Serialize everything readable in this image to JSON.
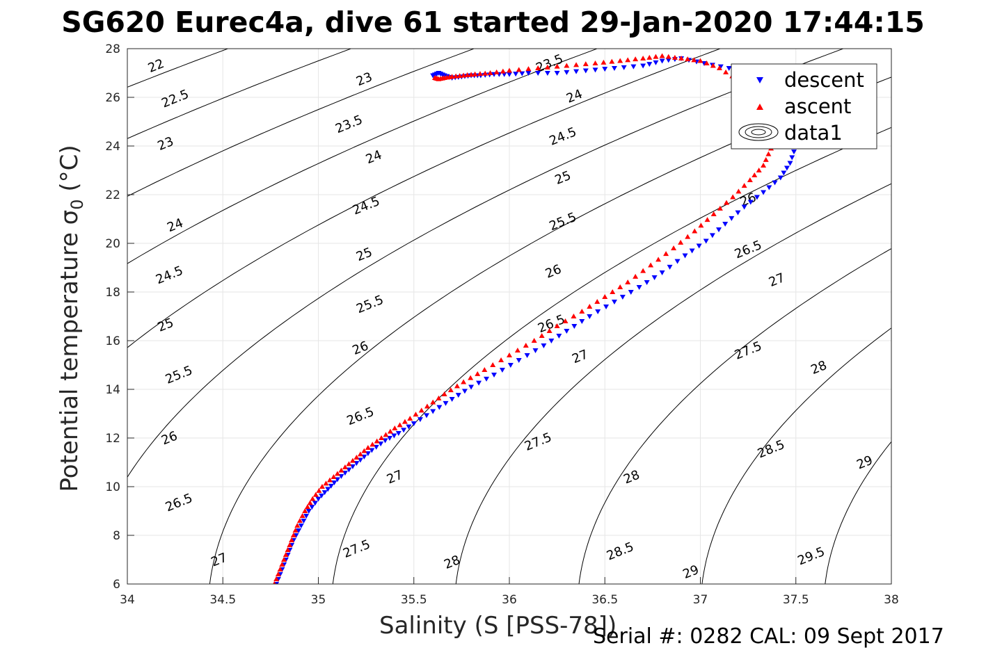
{
  "title": "SG620 Eurec4a, dive 61 started 29-Jan-2020 17:44:15",
  "footer": {
    "serial": "Serial #: 0282  CAL: 09 Sept 2017"
  },
  "colors": {
    "descent": "#0000ff",
    "ascent": "#ff0000",
    "contour": "#000000",
    "grid": "#e6e6e6"
  },
  "chart_data": {
    "type": "scatter",
    "title": "SG620 Eurec4a, dive 61 started 29-Jan-2020 17:44:15",
    "xlabel": "Salinity (S [PSS-78])",
    "ylabel_main": "Potential temperature ",
    "ylabel_symbol": "σ",
    "ylabel_sub": "0",
    "ylabel_unit": " (°C)",
    "xlim": [
      34,
      38
    ],
    "ylim": [
      6,
      28
    ],
    "xticks": [
      34,
      34.5,
      35,
      35.5,
      36,
      36.5,
      37,
      37.5,
      38
    ],
    "xtick_labels": [
      "34",
      "34.5",
      "35",
      "35.5",
      "36",
      "36.5",
      "37",
      "37.5",
      "38"
    ],
    "yticks": [
      6,
      8,
      10,
      12,
      14,
      16,
      18,
      20,
      22,
      24,
      26,
      28
    ],
    "ytick_labels": [
      "6",
      "8",
      "10",
      "12",
      "14",
      "16",
      "18",
      "20",
      "22",
      "24",
      "26",
      "28"
    ],
    "grid": true,
    "legend": {
      "placement": "top-right",
      "entries": [
        {
          "label": "descent",
          "marker": "triangle-down",
          "color": "#0000ff"
        },
        {
          "label": "ascent",
          "marker": "triangle-up",
          "color": "#ff0000"
        },
        {
          "label": "data1",
          "marker": "contour"
        }
      ]
    },
    "contours": {
      "quantity": "sigma0",
      "levels": [
        22,
        22.5,
        23,
        23.5,
        24,
        24.5,
        25,
        25.5,
        26,
        26.5,
        27,
        27.5,
        28,
        28.5,
        29,
        29.5
      ],
      "labels": [
        {
          "text": "22",
          "s": 34.15,
          "t": 27.3
        },
        {
          "text": "22.5",
          "s": 34.25,
          "t": 25.95
        },
        {
          "text": "23",
          "s": 34.2,
          "t": 24.1
        },
        {
          "text": "24",
          "s": 34.25,
          "t": 20.75
        },
        {
          "text": "24.5",
          "s": 34.22,
          "t": 18.7
        },
        {
          "text": "25",
          "s": 34.2,
          "t": 16.65
        },
        {
          "text": "25.5",
          "s": 34.27,
          "t": 14.6
        },
        {
          "text": "26",
          "s": 34.22,
          "t": 12.0
        },
        {
          "text": "26.5",
          "s": 34.27,
          "t": 9.35
        },
        {
          "text": "27",
          "s": 34.48,
          "t": 7.0
        },
        {
          "text": "23",
          "s": 35.24,
          "t": 26.75
        },
        {
          "text": "23.5",
          "s": 35.16,
          "t": 24.9
        },
        {
          "text": "24",
          "s": 35.29,
          "t": 23.55
        },
        {
          "text": "24.5",
          "s": 35.25,
          "t": 21.55
        },
        {
          "text": "25",
          "s": 35.24,
          "t": 19.55
        },
        {
          "text": "25.5",
          "s": 35.27,
          "t": 17.5
        },
        {
          "text": "26",
          "s": 35.22,
          "t": 15.7
        },
        {
          "text": "26.5",
          "s": 35.22,
          "t": 12.9
        },
        {
          "text": "27",
          "s": 35.4,
          "t": 10.4
        },
        {
          "text": "27.5",
          "s": 35.2,
          "t": 7.45
        },
        {
          "text": "28",
          "s": 35.7,
          "t": 6.9
        },
        {
          "text": "23.5",
          "s": 36.21,
          "t": 27.4
        },
        {
          "text": "24",
          "s": 36.34,
          "t": 26.05
        },
        {
          "text": "24.5",
          "s": 36.28,
          "t": 24.4
        },
        {
          "text": "25",
          "s": 36.28,
          "t": 22.7
        },
        {
          "text": "25.5",
          "s": 36.28,
          "t": 20.9
        },
        {
          "text": "26",
          "s": 36.23,
          "t": 18.85
        },
        {
          "text": "26.5",
          "s": 36.22,
          "t": 16.7
        },
        {
          "text": "27",
          "s": 36.37,
          "t": 15.35
        },
        {
          "text": "27.5",
          "s": 36.15,
          "t": 11.85
        },
        {
          "text": "28",
          "s": 36.64,
          "t": 10.4
        },
        {
          "text": "28.5",
          "s": 36.58,
          "t": 7.35
        },
        {
          "text": "29",
          "s": 36.95,
          "t": 6.5
        },
        {
          "text": "25.5",
          "s": 37.31,
          "t": 24.5
        },
        {
          "text": "26",
          "s": 37.25,
          "t": 21.8
        },
        {
          "text": "26.5",
          "s": 37.25,
          "t": 19.75
        },
        {
          "text": "27",
          "s": 37.4,
          "t": 18.5
        },
        {
          "text": "27.5",
          "s": 37.25,
          "t": 15.6
        },
        {
          "text": "28",
          "s": 37.62,
          "t": 14.9
        },
        {
          "text": "28.5",
          "s": 37.37,
          "t": 11.55
        },
        {
          "text": "29",
          "s": 37.86,
          "t": 11.0
        },
        {
          "text": "29.5",
          "s": 37.58,
          "t": 7.15
        }
      ]
    },
    "series": [
      {
        "name": "descent",
        "marker": "triangle-down",
        "color": "#0000ff",
        "x": [
          34.78,
          34.81,
          34.84,
          34.87,
          34.91,
          34.95,
          35.0,
          35.05,
          35.1,
          35.16,
          35.22,
          35.28,
          35.35,
          35.42,
          35.5,
          35.6,
          35.7,
          35.8,
          35.92,
          36.05,
          36.18,
          36.3,
          36.42,
          36.55,
          36.68,
          36.8,
          36.92,
          37.03,
          37.13,
          37.23,
          37.33,
          37.42,
          37.47,
          37.5,
          37.52,
          37.5,
          37.42,
          37.28,
          37.15,
          37.02,
          36.9,
          36.8,
          36.7,
          36.55,
          36.4,
          36.25,
          36.1,
          36.0,
          35.92,
          35.85,
          35.8,
          35.75,
          35.7,
          35.66,
          35.63,
          35.6
        ],
        "y": [
          6.0,
          6.6,
          7.2,
          7.8,
          8.4,
          9.0,
          9.5,
          9.9,
          10.3,
          10.7,
          11.1,
          11.5,
          11.9,
          12.2,
          12.6,
          13.1,
          13.6,
          14.1,
          14.6,
          15.2,
          15.8,
          16.4,
          17.0,
          17.6,
          18.2,
          18.8,
          19.5,
          20.1,
          20.8,
          21.5,
          22.1,
          22.7,
          23.3,
          24.0,
          24.8,
          25.6,
          26.3,
          26.9,
          27.2,
          27.4,
          27.6,
          27.5,
          27.3,
          27.2,
          27.1,
          27.0,
          27.0,
          26.95,
          26.95,
          26.9,
          26.9,
          26.85,
          26.8,
          26.9,
          27.0,
          26.9
        ]
      },
      {
        "name": "ascent",
        "marker": "triangle-up",
        "color": "#ff0000",
        "x": [
          34.77,
          34.8,
          34.83,
          34.86,
          34.89,
          34.93,
          34.97,
          35.02,
          35.08,
          35.14,
          35.2,
          35.26,
          35.33,
          35.4,
          35.48,
          35.57,
          35.66,
          35.76,
          35.87,
          36.0,
          36.13,
          36.25,
          36.38,
          36.5,
          36.62,
          36.74,
          36.86,
          36.97,
          37.07,
          37.17,
          37.26,
          37.33,
          37.37,
          37.38,
          37.36,
          37.3,
          37.2,
          37.1,
          37.0,
          36.9,
          36.8,
          36.7,
          36.58,
          36.45,
          36.3,
          36.15,
          36.0,
          35.9,
          35.82,
          35.76,
          35.7,
          35.66,
          35.63,
          35.61
        ],
        "y": [
          6.0,
          6.6,
          7.2,
          7.8,
          8.4,
          9.0,
          9.5,
          10.0,
          10.4,
          10.8,
          11.2,
          11.6,
          12.0,
          12.4,
          12.8,
          13.3,
          13.8,
          14.3,
          14.8,
          15.4,
          16.0,
          16.6,
          17.2,
          17.8,
          18.4,
          19.1,
          19.8,
          20.5,
          21.2,
          21.9,
          22.6,
          23.2,
          23.9,
          24.6,
          25.3,
          26.0,
          26.7,
          27.2,
          27.5,
          27.6,
          27.7,
          27.6,
          27.5,
          27.4,
          27.3,
          27.2,
          27.1,
          27.0,
          26.95,
          26.9,
          26.85,
          26.8,
          26.75,
          26.8
        ]
      }
    ]
  }
}
